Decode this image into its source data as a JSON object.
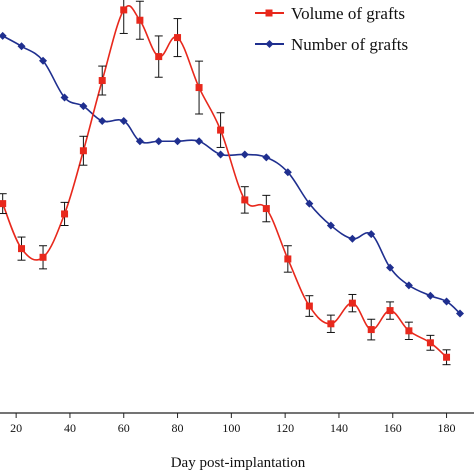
{
  "chart_data": {
    "type": "line",
    "title": "",
    "xlabel": "Day post-implantation",
    "ylabel": "",
    "x_ticks": [
      20,
      40,
      60,
      80,
      100,
      120,
      140,
      160,
      180
    ],
    "xlim": [
      14,
      185
    ],
    "ylim": [
      0,
      100
    ],
    "grid": false,
    "legend": "top-right",
    "series": [
      {
        "name": "Volume of grafts",
        "color": "#e8281c",
        "marker": "square",
        "points": [
          {
            "x": 15,
            "y": 50.7,
            "err": 2.4
          },
          {
            "x": 22,
            "y": 39.8,
            "err": 2.8
          },
          {
            "x": 30,
            "y": 37.7,
            "err": 2.8
          },
          {
            "x": 38,
            "y": 48.2,
            "err": 2.8
          },
          {
            "x": 45,
            "y": 63.5,
            "err": 3.5
          },
          {
            "x": 52,
            "y": 80.5,
            "err": 3.5
          },
          {
            "x": 60,
            "y": 97.6,
            "err": 5.7
          },
          {
            "x": 66,
            "y": 95.1,
            "err": 4.6
          },
          {
            "x": 73,
            "y": 86.3,
            "err": 5.0
          },
          {
            "x": 80,
            "y": 90.9,
            "err": 4.6
          },
          {
            "x": 88,
            "y": 78.8,
            "err": 6.4
          },
          {
            "x": 96,
            "y": 68.5,
            "err": 4.2
          },
          {
            "x": 105,
            "y": 51.6,
            "err": 3.2
          },
          {
            "x": 113,
            "y": 49.5,
            "err": 3.2
          },
          {
            "x": 121,
            "y": 37.3,
            "err": 3.2
          },
          {
            "x": 129,
            "y": 25.9,
            "err": 2.5
          },
          {
            "x": 137,
            "y": 21.6,
            "err": 2.1
          },
          {
            "x": 145,
            "y": 26.6,
            "err": 2.1
          },
          {
            "x": 152,
            "y": 20.2,
            "err": 2.5
          },
          {
            "x": 159,
            "y": 24.8,
            "err": 2.1
          },
          {
            "x": 166,
            "y": 19.9,
            "err": 2.1
          },
          {
            "x": 174,
            "y": 17.0,
            "err": 1.8
          },
          {
            "x": 180,
            "y": 13.5,
            "err": 1.8
          }
        ]
      },
      {
        "name": "Number of grafts",
        "color": "#1f2f8f",
        "marker": "diamond",
        "points": [
          {
            "x": 15,
            "y": 91.3
          },
          {
            "x": 22,
            "y": 88.8
          },
          {
            "x": 30,
            "y": 85.3
          },
          {
            "x": 38,
            "y": 76.4
          },
          {
            "x": 45,
            "y": 74.3
          },
          {
            "x": 52,
            "y": 70.7
          },
          {
            "x": 60,
            "y": 70.7
          },
          {
            "x": 66,
            "y": 65.8
          },
          {
            "x": 73,
            "y": 65.8
          },
          {
            "x": 80,
            "y": 65.8
          },
          {
            "x": 88,
            "y": 65.8
          },
          {
            "x": 96,
            "y": 62.6
          },
          {
            "x": 105,
            "y": 62.6
          },
          {
            "x": 113,
            "y": 61.9
          },
          {
            "x": 121,
            "y": 58.3
          },
          {
            "x": 129,
            "y": 50.7
          },
          {
            "x": 137,
            "y": 45.4
          },
          {
            "x": 145,
            "y": 42.2
          },
          {
            "x": 152,
            "y": 43.3
          },
          {
            "x": 159,
            "y": 35.2
          },
          {
            "x": 166,
            "y": 30.9
          },
          {
            "x": 174,
            "y": 28.4
          },
          {
            "x": 180,
            "y": 27.0
          },
          {
            "x": 185,
            "y": 24.1
          }
        ]
      }
    ]
  }
}
